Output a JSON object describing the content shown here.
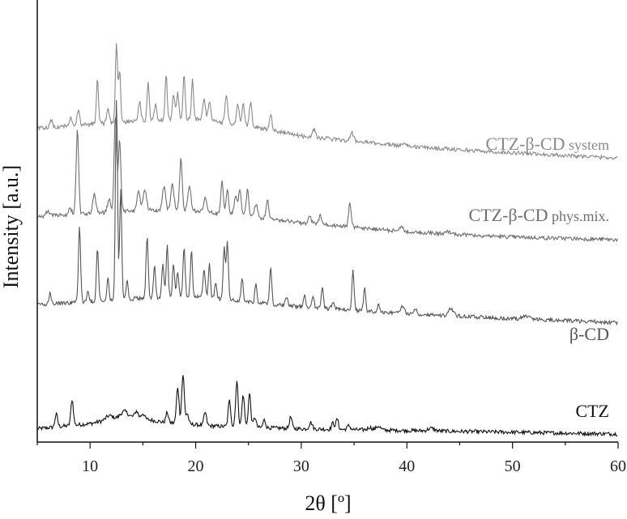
{
  "chart_data": {
    "type": "line",
    "xlabel": "2θ [º]",
    "ylabel": "Intensity [a.u.]",
    "xlim": [
      5,
      60
    ],
    "x_ticks": [
      10,
      20,
      30,
      40,
      50,
      60
    ],
    "grid": false,
    "y_tick_labels": false,
    "series": [
      {
        "name": "CTZ",
        "label_main": "CTZ",
        "label_suffix": "",
        "color": "#111111",
        "baseline": [
          [
            5,
            0.04
          ],
          [
            10,
            0.08
          ],
          [
            13.5,
            0.14
          ],
          [
            17,
            0.09
          ],
          [
            22,
            0.06
          ],
          [
            30,
            0.04
          ],
          [
            45,
            0.02
          ],
          [
            60,
            0.0
          ]
        ],
        "peaks": [
          [
            6.8,
            0.1,
            0.12
          ],
          [
            8.3,
            0.2,
            0.12
          ],
          [
            11.8,
            0.03,
            0.3
          ],
          [
            13.2,
            0.04,
            0.3
          ],
          [
            14.4,
            0.05,
            0.15
          ],
          [
            15.0,
            0.04,
            0.15
          ],
          [
            17.3,
            0.08,
            0.12
          ],
          [
            18.3,
            0.28,
            0.12
          ],
          [
            18.8,
            0.38,
            0.12
          ],
          [
            19.2,
            0.08,
            0.12
          ],
          [
            20.9,
            0.1,
            0.12
          ],
          [
            23.2,
            0.2,
            0.12
          ],
          [
            23.9,
            0.35,
            0.12
          ],
          [
            24.5,
            0.25,
            0.12
          ],
          [
            25.1,
            0.26,
            0.12
          ],
          [
            25.6,
            0.08,
            0.12
          ],
          [
            26.5,
            0.06,
            0.12
          ],
          [
            29.0,
            0.09,
            0.12
          ],
          [
            30.9,
            0.05,
            0.15
          ],
          [
            33.0,
            0.05,
            0.12
          ],
          [
            33.4,
            0.08,
            0.12
          ],
          [
            34.5,
            0.03,
            0.15
          ],
          [
            36.5,
            0.02,
            0.2
          ],
          [
            37.3,
            0.03,
            0.2
          ],
          [
            42.3,
            0.02,
            0.3
          ]
        ]
      },
      {
        "name": "β-CD",
        "label_main": "β-CD",
        "label_suffix": "",
        "color": "#555555",
        "baseline": [
          [
            5,
            1.0
          ],
          [
            10,
            1.02
          ],
          [
            15,
            1.05
          ],
          [
            20,
            1.06
          ],
          [
            25,
            1.02
          ],
          [
            30,
            0.98
          ],
          [
            40,
            0.93
          ],
          [
            50,
            0.89
          ],
          [
            60,
            0.86
          ]
        ],
        "peaks": [
          [
            6.2,
            0.08,
            0.1
          ],
          [
            9.0,
            0.6,
            0.1
          ],
          [
            9.8,
            0.08,
            0.1
          ],
          [
            10.7,
            0.42,
            0.1
          ],
          [
            11.7,
            0.18,
            0.1
          ],
          [
            12.5,
            1.55,
            0.1
          ],
          [
            12.9,
            0.85,
            0.1
          ],
          [
            13.5,
            0.14,
            0.1
          ],
          [
            15.4,
            0.48,
            0.1
          ],
          [
            16.1,
            0.24,
            0.1
          ],
          [
            16.9,
            0.26,
            0.1
          ],
          [
            17.3,
            0.4,
            0.1
          ],
          [
            17.9,
            0.26,
            0.1
          ],
          [
            18.3,
            0.2,
            0.1
          ],
          [
            18.9,
            0.38,
            0.1
          ],
          [
            19.6,
            0.36,
            0.1
          ],
          [
            20.8,
            0.22,
            0.1
          ],
          [
            21.3,
            0.26,
            0.1
          ],
          [
            21.9,
            0.12,
            0.1
          ],
          [
            22.7,
            0.4,
            0.1
          ],
          [
            23.0,
            0.44,
            0.1
          ],
          [
            24.4,
            0.18,
            0.1
          ],
          [
            25.7,
            0.14,
            0.1
          ],
          [
            27.1,
            0.28,
            0.1
          ],
          [
            28.6,
            0.06,
            0.12
          ],
          [
            30.3,
            0.1,
            0.1
          ],
          [
            31.1,
            0.1,
            0.1
          ],
          [
            32.0,
            0.16,
            0.1
          ],
          [
            33.0,
            0.06,
            0.12
          ],
          [
            34.9,
            0.3,
            0.1
          ],
          [
            36.0,
            0.18,
            0.1
          ],
          [
            37.3,
            0.05,
            0.12
          ],
          [
            39.6,
            0.06,
            0.15
          ],
          [
            40.8,
            0.04,
            0.15
          ],
          [
            44.2,
            0.06,
            0.2
          ],
          [
            51.3,
            0.03,
            0.3
          ]
        ]
      },
      {
        "name": "CTZ-β-CD phys.mix.",
        "label_main": "CTZ-β-CD",
        "label_suffix": "phys.mix.",
        "color": "#6f6f6f",
        "baseline": [
          [
            5,
            1.68
          ],
          [
            10,
            1.7
          ],
          [
            15,
            1.73
          ],
          [
            20,
            1.72
          ],
          [
            25,
            1.68
          ],
          [
            30,
            1.63
          ],
          [
            40,
            1.56
          ],
          [
            50,
            1.52
          ],
          [
            60,
            1.5
          ]
        ],
        "peaks": [
          [
            6.0,
            0.04,
            0.15
          ],
          [
            8.1,
            0.05,
            0.15
          ],
          [
            8.8,
            0.65,
            0.12
          ],
          [
            10.4,
            0.15,
            0.15
          ],
          [
            11.8,
            0.1,
            0.15
          ],
          [
            12.4,
            0.75,
            0.12
          ],
          [
            12.8,
            0.55,
            0.12
          ],
          [
            14.6,
            0.14,
            0.15
          ],
          [
            15.2,
            0.16,
            0.15
          ],
          [
            17.0,
            0.18,
            0.15
          ],
          [
            17.8,
            0.2,
            0.15
          ],
          [
            18.6,
            0.4,
            0.12
          ],
          [
            19.4,
            0.2,
            0.15
          ],
          [
            20.9,
            0.1,
            0.15
          ],
          [
            22.5,
            0.25,
            0.12
          ],
          [
            23.0,
            0.2,
            0.12
          ],
          [
            23.8,
            0.15,
            0.15
          ],
          [
            24.2,
            0.2,
            0.12
          ],
          [
            24.9,
            0.2,
            0.12
          ],
          [
            25.7,
            0.1,
            0.15
          ],
          [
            26.8,
            0.15,
            0.12
          ],
          [
            30.8,
            0.05,
            0.15
          ],
          [
            31.8,
            0.08,
            0.12
          ],
          [
            34.6,
            0.18,
            0.12
          ],
          [
            39.5,
            0.03,
            0.2
          ],
          [
            44.0,
            0.02,
            0.2
          ]
        ]
      },
      {
        "name": "CTZ-β-CD system",
        "label_main": "CTZ-β-CD",
        "label_suffix": "system",
        "color": "#8a8a8a",
        "baseline": [
          [
            5,
            2.36
          ],
          [
            10,
            2.39
          ],
          [
            15,
            2.42
          ],
          [
            20,
            2.43
          ],
          [
            25,
            2.38
          ],
          [
            30,
            2.3
          ],
          [
            40,
            2.22
          ],
          [
            50,
            2.17
          ],
          [
            60,
            2.13
          ]
        ],
        "peaks": [
          [
            6.3,
            0.06,
            0.12
          ],
          [
            8.2,
            0.06,
            0.12
          ],
          [
            8.9,
            0.12,
            0.12
          ],
          [
            10.7,
            0.35,
            0.1
          ],
          [
            11.7,
            0.12,
            0.12
          ],
          [
            12.5,
            0.6,
            0.1
          ],
          [
            12.8,
            0.4,
            0.1
          ],
          [
            14.7,
            0.14,
            0.12
          ],
          [
            15.5,
            0.3,
            0.1
          ],
          [
            16.2,
            0.12,
            0.12
          ],
          [
            17.2,
            0.36,
            0.1
          ],
          [
            17.9,
            0.18,
            0.12
          ],
          [
            18.3,
            0.2,
            0.12
          ],
          [
            18.9,
            0.36,
            0.1
          ],
          [
            19.7,
            0.3,
            0.1
          ],
          [
            20.8,
            0.18,
            0.12
          ],
          [
            21.3,
            0.15,
            0.12
          ],
          [
            22.9,
            0.22,
            0.12
          ],
          [
            24.0,
            0.15,
            0.12
          ],
          [
            24.5,
            0.16,
            0.12
          ],
          [
            25.2,
            0.18,
            0.12
          ],
          [
            27.1,
            0.13,
            0.12
          ],
          [
            31.2,
            0.06,
            0.15
          ],
          [
            34.8,
            0.06,
            0.15
          ],
          [
            39.8,
            0.03,
            0.2
          ]
        ]
      }
    ]
  }
}
